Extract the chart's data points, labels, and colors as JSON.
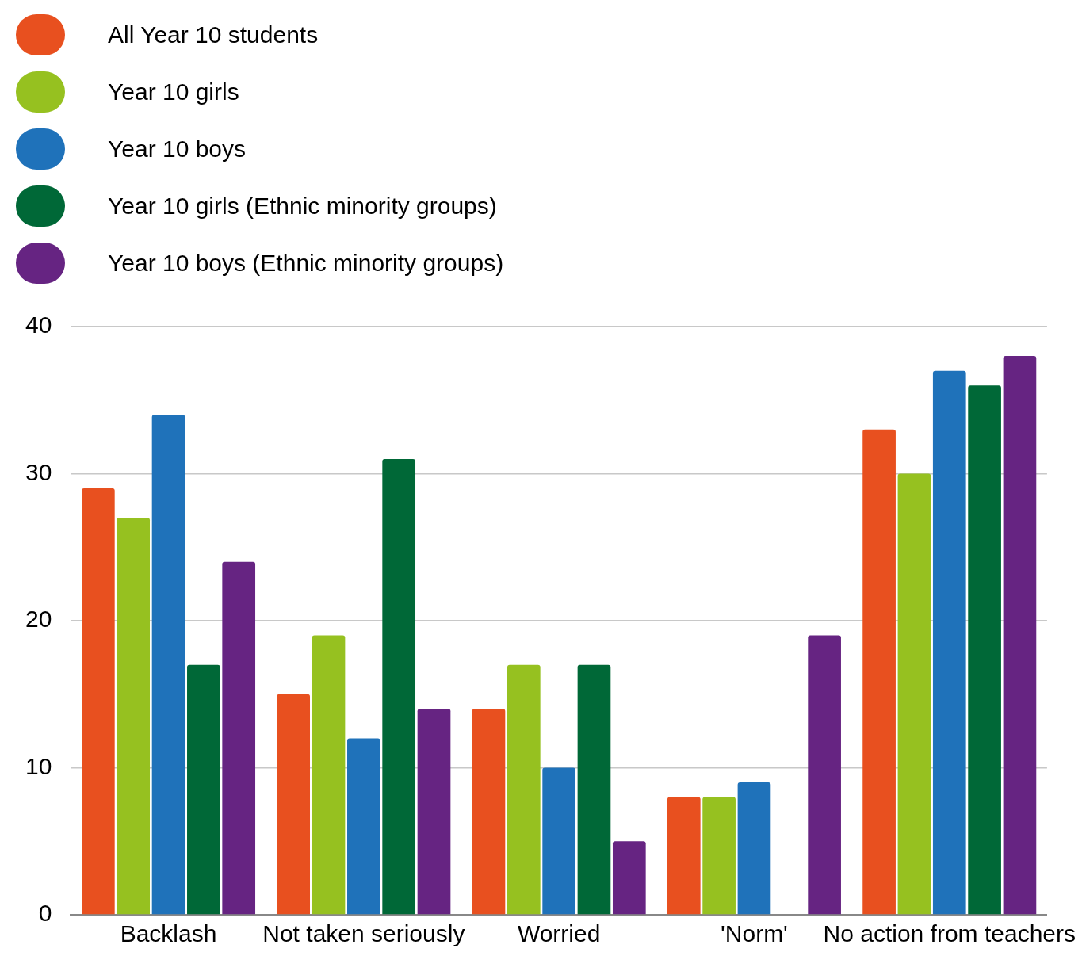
{
  "chart_data": {
    "type": "bar",
    "categories": [
      "Backlash",
      "Not taken seriously",
      "Worried",
      "'Norm'",
      "No action from teachers"
    ],
    "series": [
      {
        "name": "All Year 10 students",
        "color": "#e8501f",
        "values": [
          29,
          15,
          14,
          8,
          33
        ]
      },
      {
        "name": "Year 10 girls",
        "color": "#96c120",
        "values": [
          27,
          19,
          17,
          8,
          30
        ]
      },
      {
        "name": "Year 10 boys",
        "color": "#1f72ba",
        "values": [
          34,
          12,
          10,
          9,
          37
        ]
      },
      {
        "name": "Year 10 girls (Ethnic minority groups)",
        "color": "#006837",
        "values": [
          17,
          31,
          17,
          null,
          36
        ]
      },
      {
        "name": "Year 10 boys (Ethnic minority groups)",
        "color": "#662482",
        "values": [
          24,
          14,
          5,
          19,
          38
        ]
      }
    ],
    "ylim": [
      0,
      40
    ],
    "yticks": [
      0,
      10,
      20,
      30,
      40
    ],
    "grid": "y",
    "legend": "top left"
  }
}
